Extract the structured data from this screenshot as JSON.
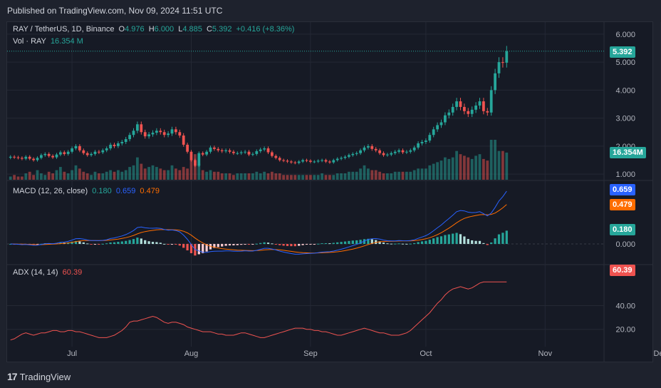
{
  "header": {
    "published": "Published on TradingView.com, Nov 09, 2024 11:51 UTC"
  },
  "footer": {
    "brand": "TradingView",
    "logo_text": "17"
  },
  "colors": {
    "up": "#26a69a",
    "down": "#ef5350",
    "macd": "#2962ff",
    "signal": "#ff6d00",
    "adx": "#ef5350",
    "bg": "#161a25",
    "grid": "#242834"
  },
  "legend": {
    "symbol": "RAY / TetherUS, 1D, Binance",
    "o_label": "O",
    "o": "4.976",
    "h_label": "H",
    "h": "6.000",
    "l_label": "L",
    "l": "4.885",
    "c_label": "C",
    "c": "5.392",
    "change": "+0.416 (+8.36%)",
    "vol_label": "Vol · RAY",
    "vol": "16.354 M",
    "macd_label": "MACD (12, 26, close)",
    "macd_hist": "0.180",
    "macd_line": "0.659",
    "macd_signal": "0.479",
    "adx_label": "ADX (14, 14)",
    "adx_value": "60.39"
  },
  "tags": {
    "price": "5.392",
    "volume": "16.354M",
    "macd_line": "0.659",
    "macd_signal": "0.479",
    "macd_hist": "0.180",
    "adx": "60.39"
  },
  "chart_data": [
    {
      "type": "candlestick",
      "title": "RAY / TetherUS, 1D, Binance",
      "x_ticks": [
        "Jul",
        "Aug",
        "Sep",
        "Oct",
        "Nov",
        "Dec"
      ],
      "y_ticks": [
        "1.000",
        "2.000",
        "3.000",
        "4.000",
        "5.000",
        "6.000"
      ],
      "ylim": [
        0.8,
        6.2
      ],
      "grid": true,
      "last": 5.392,
      "close": [
        1.62,
        1.6,
        1.58,
        1.55,
        1.62,
        1.55,
        1.5,
        1.58,
        1.68,
        1.72,
        1.65,
        1.6,
        1.7,
        1.78,
        1.72,
        1.8,
        1.92,
        2.0,
        1.85,
        1.75,
        1.68,
        1.72,
        1.8,
        1.78,
        1.85,
        1.92,
        2.05,
        2.0,
        2.1,
        2.15,
        2.25,
        2.4,
        2.55,
        2.78,
        2.5,
        2.35,
        2.42,
        2.48,
        2.55,
        2.5,
        2.4,
        2.45,
        2.6,
        2.5,
        2.38,
        2.05,
        1.8,
        1.5,
        1.3,
        1.75,
        1.7,
        1.8,
        1.95,
        1.9,
        1.85,
        1.82,
        1.85,
        1.8,
        1.75,
        1.75,
        1.78,
        1.8,
        1.7,
        1.72,
        1.82,
        1.88,
        1.92,
        1.78,
        1.65,
        1.58,
        1.5,
        1.48,
        1.45,
        1.42,
        1.4,
        1.45,
        1.5,
        1.48,
        1.44,
        1.45,
        1.48,
        1.5,
        1.45,
        1.42,
        1.5,
        1.55,
        1.58,
        1.62,
        1.68,
        1.72,
        1.75,
        1.85,
        1.95,
        2.0,
        1.9,
        1.85,
        1.75,
        1.68,
        1.7,
        1.75,
        1.8,
        1.85,
        1.78,
        1.8,
        1.85,
        1.95,
        2.1,
        2.15,
        2.2,
        2.4,
        2.6,
        2.75,
        2.85,
        3.1,
        3.2,
        3.4,
        3.6,
        3.4,
        3.25,
        3.15,
        3.3,
        3.45,
        3.6,
        3.25,
        3.2,
        4.0,
        4.6,
        5.0,
        4.98,
        5.39
      ]
    },
    {
      "type": "bar",
      "title": "Vol · RAY",
      "note": "daily volume, relative scale (last = 16.354 M)",
      "values": [
        2,
        3,
        2,
        2,
        4,
        5,
        3,
        6,
        4,
        3,
        5,
        4,
        6,
        8,
        5,
        4,
        6,
        9,
        7,
        5,
        4,
        3,
        5,
        4,
        4,
        5,
        6,
        5,
        6,
        5,
        6,
        8,
        9,
        14,
        10,
        7,
        8,
        9,
        8,
        7,
        6,
        6,
        9,
        7,
        6,
        8,
        7,
        13,
        16,
        10,
        6,
        5,
        6,
        5,
        5,
        4,
        4,
        4,
        3,
        4,
        4,
        4,
        4,
        4,
        5,
        4,
        5,
        4,
        5,
        4,
        4,
        3,
        3,
        3,
        3,
        3,
        3,
        3,
        3,
        3,
        3,
        4,
        3,
        3,
        3,
        4,
        4,
        4,
        5,
        5,
        5,
        7,
        9,
        7,
        6,
        6,
        5,
        4,
        4,
        4,
        5,
        5,
        5,
        5,
        5,
        6,
        7,
        7,
        7,
        9,
        10,
        11,
        12,
        14,
        13,
        14,
        18,
        16,
        15,
        14,
        13,
        15,
        16,
        13,
        12,
        25,
        25,
        18,
        18,
        17
      ]
    },
    {
      "type": "line",
      "title": "MACD (12, 26, close)",
      "y_ticks": [
        "0.000"
      ],
      "ylim": [
        -0.26,
        0.8
      ],
      "series": [
        {
          "name": "MACD",
          "values": [
            0.659
          ]
        },
        {
          "name": "Signal",
          "values": [
            0.479
          ]
        },
        {
          "name": "Histogram",
          "values": [
            0.18
          ]
        }
      ]
    },
    {
      "type": "line",
      "title": "ADX (14, 14)",
      "y_ticks": [
        "20.00",
        "40.00"
      ],
      "ylim": [
        6,
        74
      ],
      "series": [
        {
          "name": "ADX",
          "values": [
            11,
            12,
            14,
            16,
            17,
            16,
            15,
            16,
            17,
            17,
            18,
            19,
            19,
            18,
            18,
            19,
            19,
            18,
            18,
            17,
            16,
            15,
            14,
            13,
            13,
            13,
            14,
            15,
            17,
            19,
            22,
            26,
            27,
            27,
            28,
            29,
            30,
            31,
            30,
            28,
            26,
            25,
            26,
            26,
            25,
            24,
            22,
            21,
            20,
            19,
            18,
            18,
            18,
            17,
            16,
            16,
            15,
            15,
            15,
            16,
            17,
            17,
            16,
            15,
            14,
            13,
            13,
            14,
            15,
            16,
            17,
            18,
            19,
            20,
            21,
            21,
            21,
            20,
            20,
            19,
            19,
            18,
            18,
            17,
            16,
            15,
            15,
            16,
            17,
            18,
            19,
            20,
            21,
            20,
            19,
            18,
            17,
            17,
            16,
            15,
            15,
            15,
            16,
            17,
            19,
            22,
            25,
            28,
            31,
            34,
            38,
            42,
            45,
            49,
            52,
            54,
            55,
            56,
            55,
            54,
            55,
            57,
            59,
            60,
            60,
            60,
            60,
            60,
            60,
            60
          ]
        }
      ]
    }
  ]
}
